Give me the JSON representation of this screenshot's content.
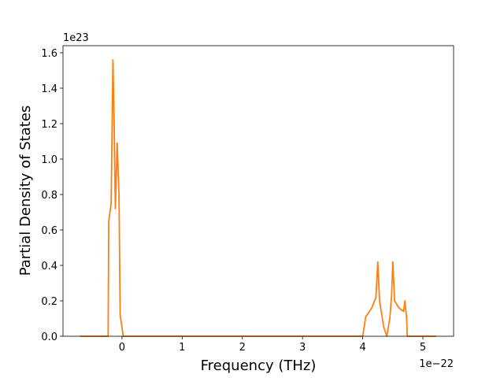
{
  "chart_data": {
    "type": "line",
    "xlabel": "Frequency (THz)",
    "ylabel": "Partial Density of States",
    "x_offset_label": "1e−22",
    "y_offset_label": "1e23",
    "x": [
      -0.7,
      -0.23,
      -0.22,
      -0.18,
      -0.15,
      -0.13,
      -0.11,
      -0.08,
      -0.05,
      -0.03,
      0.0,
      0.02,
      4.0,
      4.05,
      4.15,
      4.22,
      4.25,
      4.28,
      4.35,
      4.4,
      4.45,
      4.48,
      4.5,
      4.53,
      4.6,
      4.68,
      4.7,
      4.73,
      4.74,
      5.22
    ],
    "series": [
      {
        "color": "#ff7f0e",
        "values": [
          0,
          0,
          0.65,
          0.75,
          1.56,
          1.2,
          0.72,
          1.09,
          0.8,
          0.12,
          0.05,
          0,
          0,
          0.11,
          0.16,
          0.22,
          0.42,
          0.2,
          0.05,
          0,
          0.1,
          0.23,
          0.42,
          0.2,
          0.16,
          0.14,
          0.2,
          0.1,
          0,
          0
        ]
      }
    ],
    "xlim": [
      -0.98,
      5.51
    ],
    "ylim": [
      0,
      1.64
    ],
    "xticks": [
      0,
      1,
      2,
      3,
      4,
      5
    ],
    "yticks": [
      {
        "value": 0,
        "label": "0.0"
      },
      0.2,
      0.4,
      0.6,
      0.8,
      {
        "value": 1,
        "label": "1.0"
      },
      1.2,
      1.4,
      1.6
    ],
    "grid": false
  }
}
